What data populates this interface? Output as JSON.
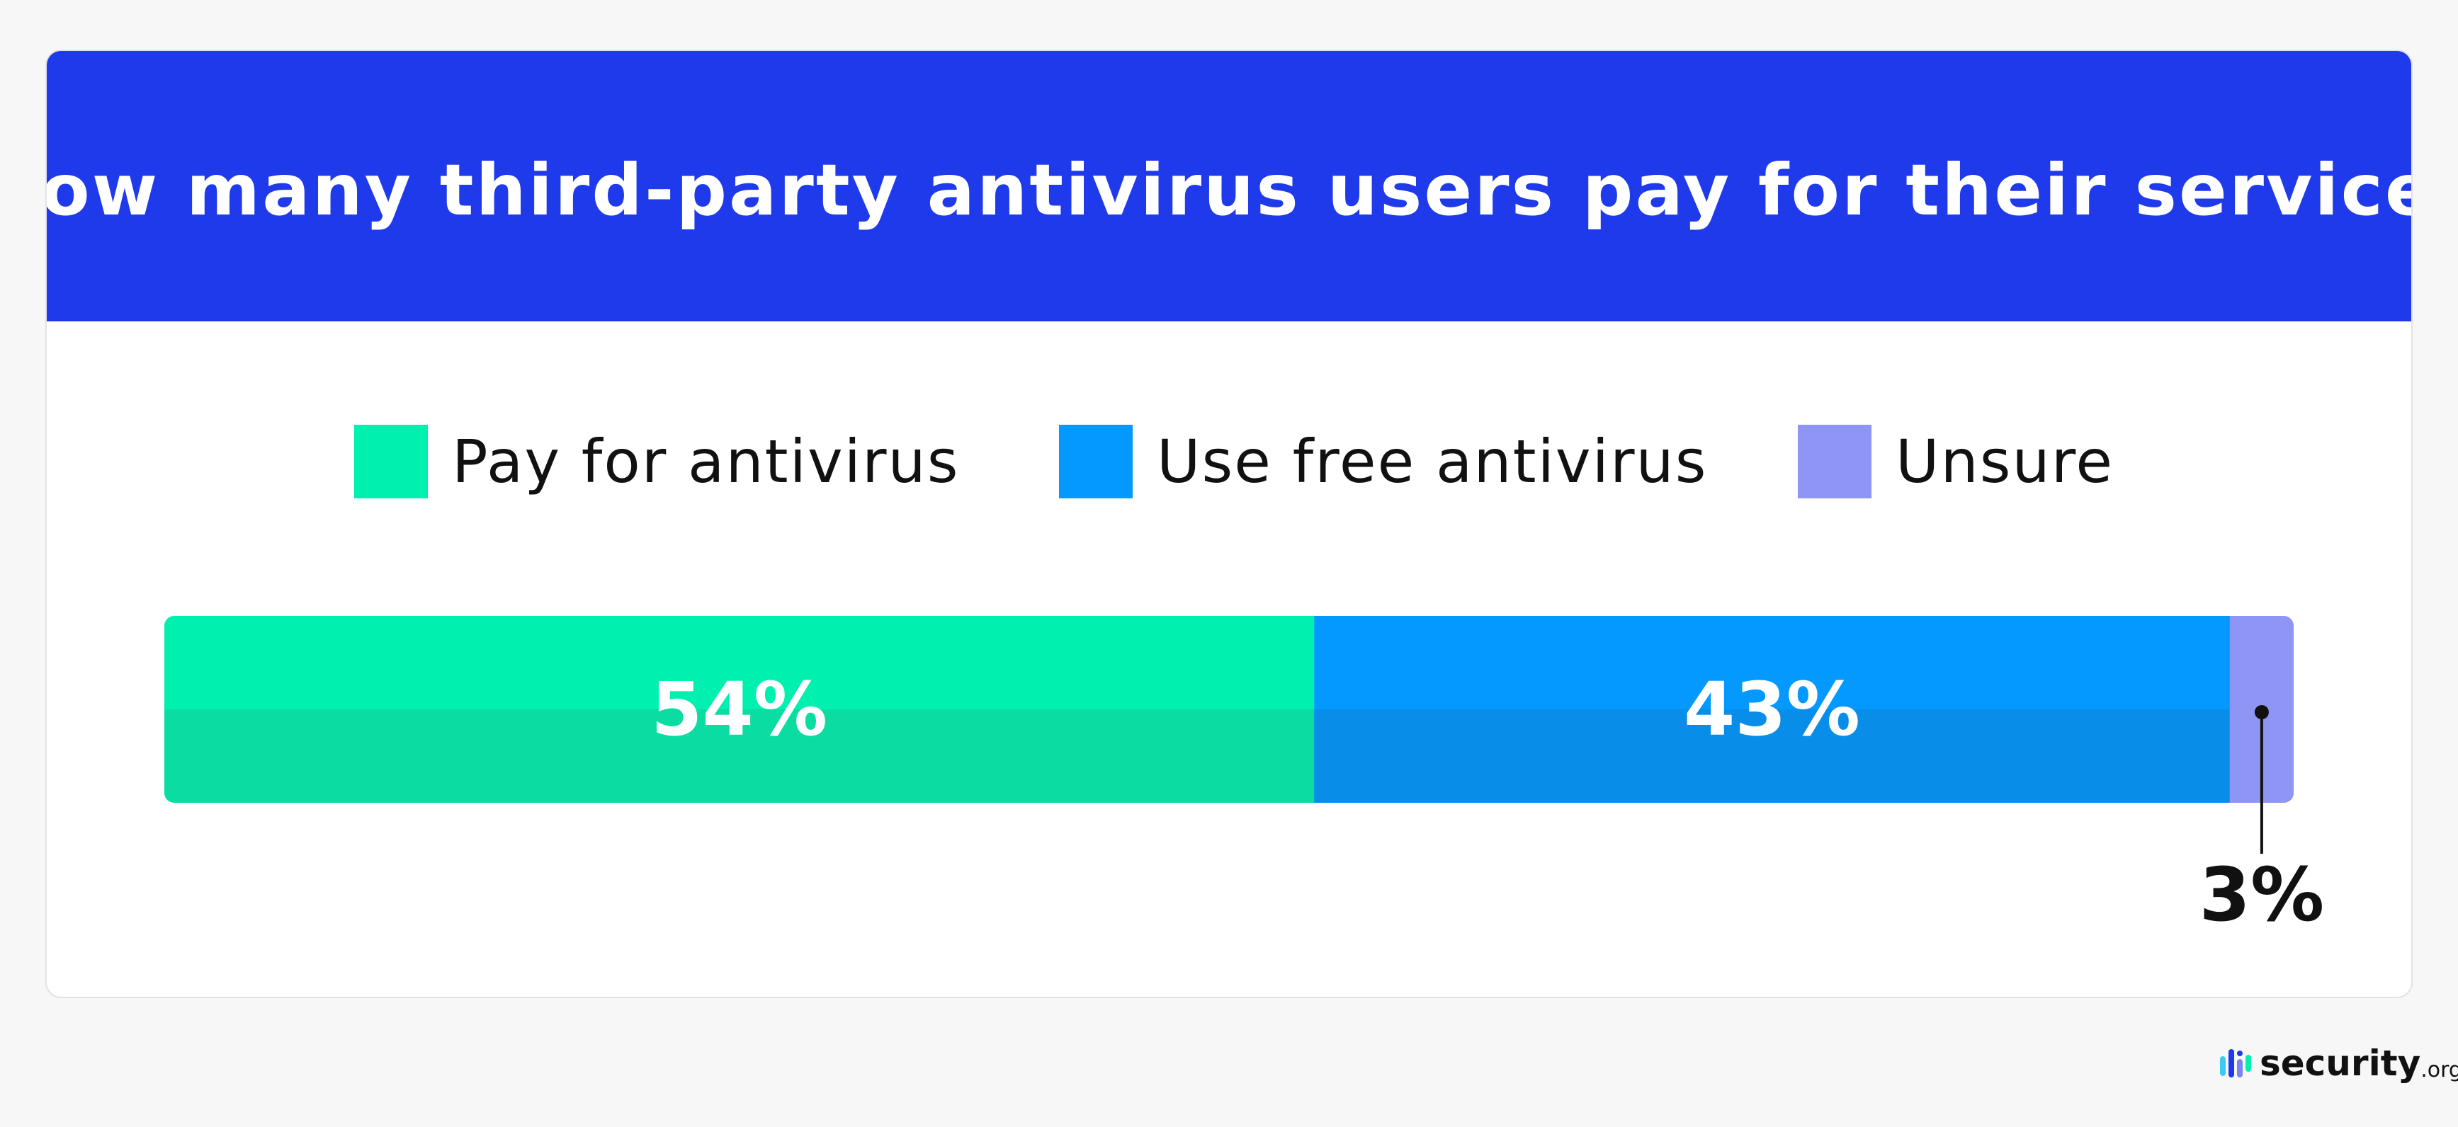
{
  "colors": {
    "background": "#f8f7f8",
    "header": "#1f3aea",
    "card": "#ffffff"
  },
  "chart_data": {
    "type": "bar",
    "orientation": "horizontal",
    "stacked": true,
    "title": "How many third-party antivirus users pay for their service?",
    "unit": "%",
    "legend_position": "top",
    "grid": false,
    "series": [
      {
        "name": "Pay for antivirus",
        "value": 54,
        "label": "54%",
        "color": "#00f0b0",
        "shade_color": "#0bdca2",
        "label_placement": "inside"
      },
      {
        "name": "Use free antivirus",
        "value": 43,
        "label": "43%",
        "color": "#0399ff",
        "shade_color": "#088ee8",
        "label_placement": "inside"
      },
      {
        "name": "Unsure",
        "value": 3,
        "label": "3%",
        "color": "#8f95f5",
        "shade_color": "#8f95f5",
        "label_placement": "callout-below"
      }
    ]
  },
  "brand": {
    "name": "security",
    "tld": ".org",
    "logo_icon": "security-org-logo-icon"
  }
}
